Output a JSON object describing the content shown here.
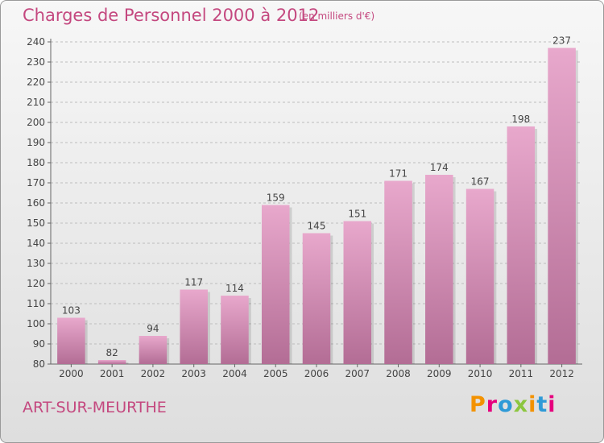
{
  "header": {
    "title": "Charges de Personnel 2000 à 2012",
    "subtitle": "(en milliers d'€)"
  },
  "footer": {
    "place": "ART-SUR-MEURTHE",
    "logo": "Proxiti"
  },
  "logo_letters": [
    "P",
    "r",
    "o",
    "x",
    "i",
    "t",
    "i"
  ],
  "logo_colors": [
    "#f39200",
    "#e6007e",
    "#2e9ad7",
    "#8cc63f",
    "#f39200",
    "#2e9ad7",
    "#e6007e"
  ],
  "colors": {
    "accent": "#c4487f",
    "bar_top": "#e8a8cc",
    "bar_bottom": "#b36d95",
    "grid": "#bdbdbd"
  },
  "chart_data": {
    "type": "bar",
    "title": "Charges de Personnel 2000 à 2012",
    "subtitle": "(en milliers d'€)",
    "categories": [
      "2000",
      "2001",
      "2002",
      "2003",
      "2004",
      "2005",
      "2006",
      "2007",
      "2008",
      "2009",
      "2010",
      "2011",
      "2012"
    ],
    "values": [
      103,
      82,
      94,
      117,
      114,
      159,
      145,
      151,
      171,
      174,
      167,
      198,
      237
    ],
    "ylim": [
      80,
      240
    ],
    "yticks": [
      80,
      90,
      100,
      110,
      120,
      130,
      140,
      150,
      160,
      170,
      180,
      190,
      200,
      210,
      220,
      230,
      240
    ],
    "grid": true,
    "grid_style": "dashed"
  }
}
